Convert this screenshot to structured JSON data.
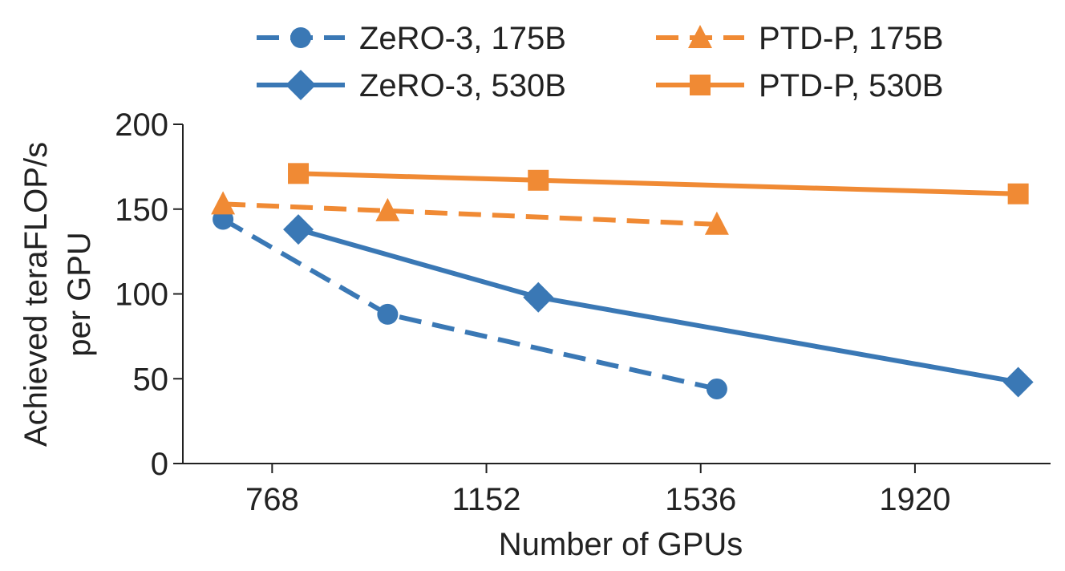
{
  "chart_data": {
    "type": "line",
    "xlabel": "Number of GPUs",
    "ylabel_lines": [
      "Achieved teraFLOP/s",
      "per GPU"
    ],
    "xlim": [
      608,
      2163
    ],
    "ylim": [
      0,
      200
    ],
    "xticks": [
      768,
      1152,
      1536,
      1920
    ],
    "yticks": [
      0,
      50,
      100,
      150,
      200
    ],
    "grid": false,
    "legend_placement": "top",
    "series": [
      {
        "name": "ZeRO-3, 175B",
        "color": "#3a78b5",
        "marker": "circle",
        "dash": true,
        "x": [
          680,
          975,
          1565
        ],
        "y": [
          144,
          88,
          44
        ]
      },
      {
        "name": "PTD-P, 175B",
        "color": "#f08a34",
        "marker": "triangle",
        "dash": true,
        "x": [
          680,
          975,
          1565
        ],
        "y": [
          153,
          149,
          141
        ]
      },
      {
        "name": "ZeRO-3, 530B",
        "color": "#3a78b5",
        "marker": "diamond",
        "dash": false,
        "x": [
          815,
          1245,
          2105
        ],
        "y": [
          138,
          98,
          48
        ]
      },
      {
        "name": "PTD-P, 530B",
        "color": "#f08a34",
        "marker": "square",
        "dash": false,
        "x": [
          815,
          1245,
          2105
        ],
        "y": [
          171,
          167,
          159
        ]
      }
    ]
  }
}
